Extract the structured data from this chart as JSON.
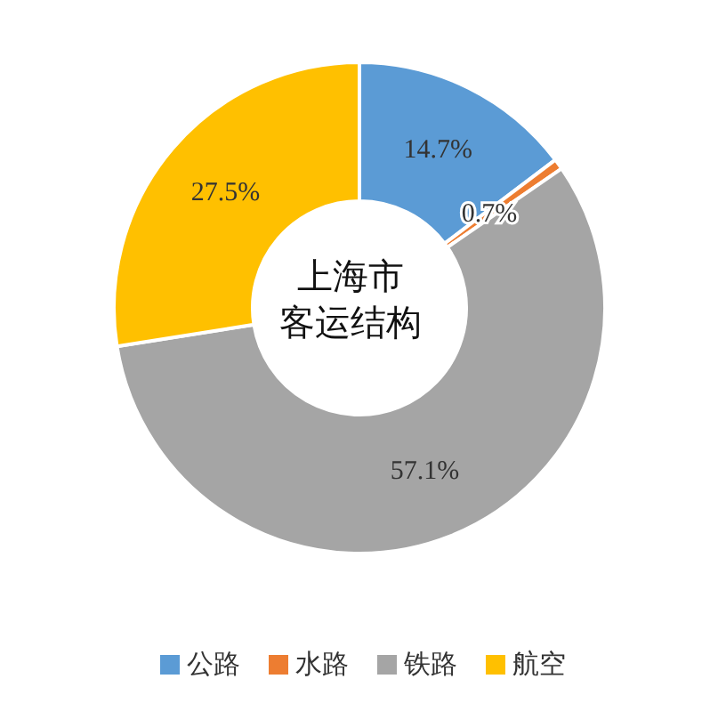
{
  "chart_data": {
    "type": "donut",
    "title": "上海市",
    "subtitle": "客运结构",
    "categories": [
      "公路",
      "水路",
      "铁路",
      "航空"
    ],
    "values": [
      14.7,
      0.7,
      57.1,
      27.5
    ],
    "colors": [
      "#5b9bd5",
      "#ed7d31",
      "#a5a5a5",
      "#ffc000"
    ],
    "value_labels": [
      "14.7%",
      "0.7%",
      "57.1%",
      "27.5%"
    ],
    "legend": "bottom"
  }
}
